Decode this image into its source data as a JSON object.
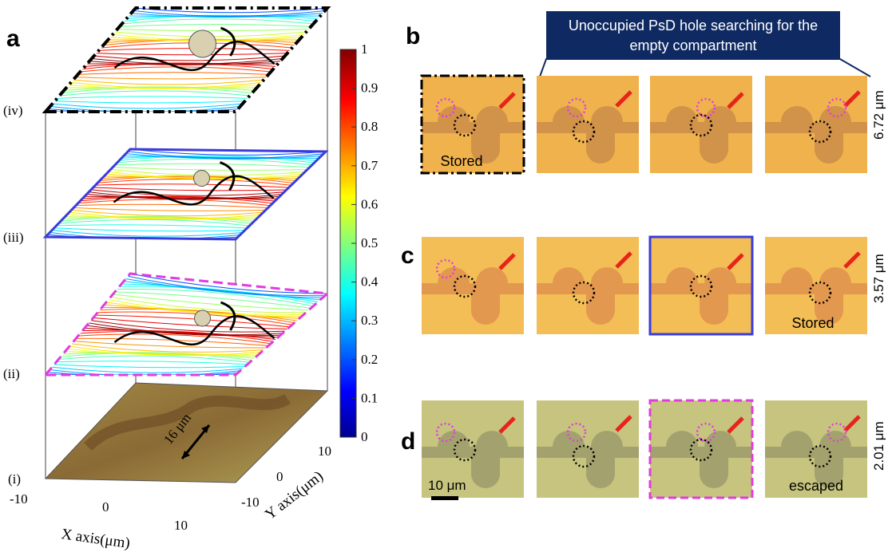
{
  "panel_labels": [
    "a",
    "b",
    "c",
    "d"
  ],
  "panel_a": {
    "layer_labels": [
      "(iv)",
      "(iii)",
      "(ii)",
      "(i)"
    ],
    "x_axis_label": "X axis(μm)",
    "y_axis_label": "Y axis(μm)",
    "x_ticks": [
      -10,
      0,
      10
    ],
    "y_ticks": [
      -10,
      0,
      10
    ],
    "scale_annotation": "16 μm",
    "colorbar": {
      "lim": [
        0,
        1
      ],
      "ticks": [
        0,
        0.1,
        0.2,
        0.3,
        0.4,
        0.5,
        0.6,
        0.7,
        0.8,
        0.9,
        1
      ]
    }
  },
  "banner": {
    "lines": [
      "Unoccupied PsD hole searching for the",
      "empty  compartment"
    ]
  },
  "captions": {
    "b": "Stored",
    "c": "Stored",
    "d": "escaped"
  },
  "scale_bar": "10 μm",
  "row_labels": [
    "6.72 μm",
    "3.57 μm",
    "2.01 μm"
  ]
}
